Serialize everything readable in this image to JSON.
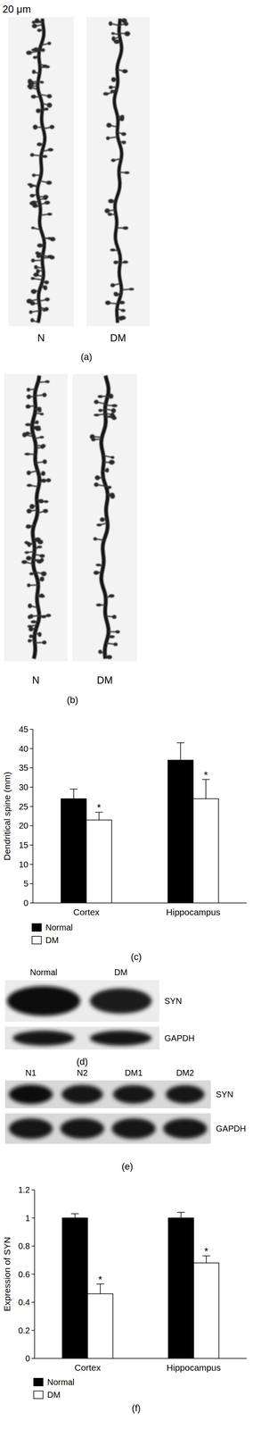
{
  "scale_bar": "20 μm",
  "micrographs": [
    {
      "panel": "(a)",
      "images": [
        "N",
        "DM"
      ]
    },
    {
      "panel": "(b)",
      "images": [
        "N",
        "DM"
      ]
    }
  ],
  "chart_data": [
    {
      "type": "bar",
      "title": "(c)",
      "y_label": "Dendritical spine (mm)",
      "categories": [
        "Cortex",
        "Hippocampus"
      ],
      "series": [
        {
          "name": "Normal",
          "color": "#000000",
          "values": [
            27,
            37
          ],
          "errors": [
            2.5,
            4.5
          ]
        },
        {
          "name": "DM",
          "color": "#ffffff",
          "values": [
            21.5,
            27
          ],
          "errors": [
            2,
            5
          ]
        }
      ],
      "ylim": [
        0,
        45
      ],
      "yticks": [
        0,
        5,
        10,
        15,
        20,
        25,
        30,
        35,
        40,
        45
      ],
      "grid": false,
      "legend": "bottom",
      "annotations": [
        {
          "text": "*",
          "category": "Cortex",
          "series": "DM"
        },
        {
          "text": "*",
          "category": "Hippocampus",
          "series": "DM"
        }
      ]
    },
    {
      "type": "bar",
      "title": "(f)",
      "y_label": "Expression of SYN",
      "categories": [
        "Cortex",
        "Hippocampus"
      ],
      "series": [
        {
          "name": "Normal",
          "color": "#000000",
          "values": [
            1,
            1
          ],
          "errors": [
            0.03,
            0.04
          ]
        },
        {
          "name": "DM",
          "color": "#ffffff",
          "values": [
            0.46,
            0.68
          ],
          "errors": [
            0.07,
            0.05
          ]
        }
      ],
      "ylim": [
        0,
        1.2
      ],
      "yticks": [
        0,
        0.2,
        0.4,
        0.6,
        0.8,
        1,
        1.2
      ],
      "grid": false,
      "legend": "bottom",
      "annotations": [
        {
          "text": "*",
          "category": "Cortex",
          "series": "DM"
        },
        {
          "text": "*",
          "category": "Hippocampus",
          "series": "DM"
        }
      ]
    }
  ],
  "blots": [
    {
      "panel": "(d)",
      "lanes": [
        "Normal",
        "DM"
      ],
      "rows": [
        "SYN",
        "GAPDH"
      ]
    },
    {
      "panel": "(e)",
      "lanes": [
        "N1",
        "N2",
        "DM1",
        "DM2"
      ],
      "rows": [
        "SYN",
        "GAPDH"
      ]
    }
  ]
}
